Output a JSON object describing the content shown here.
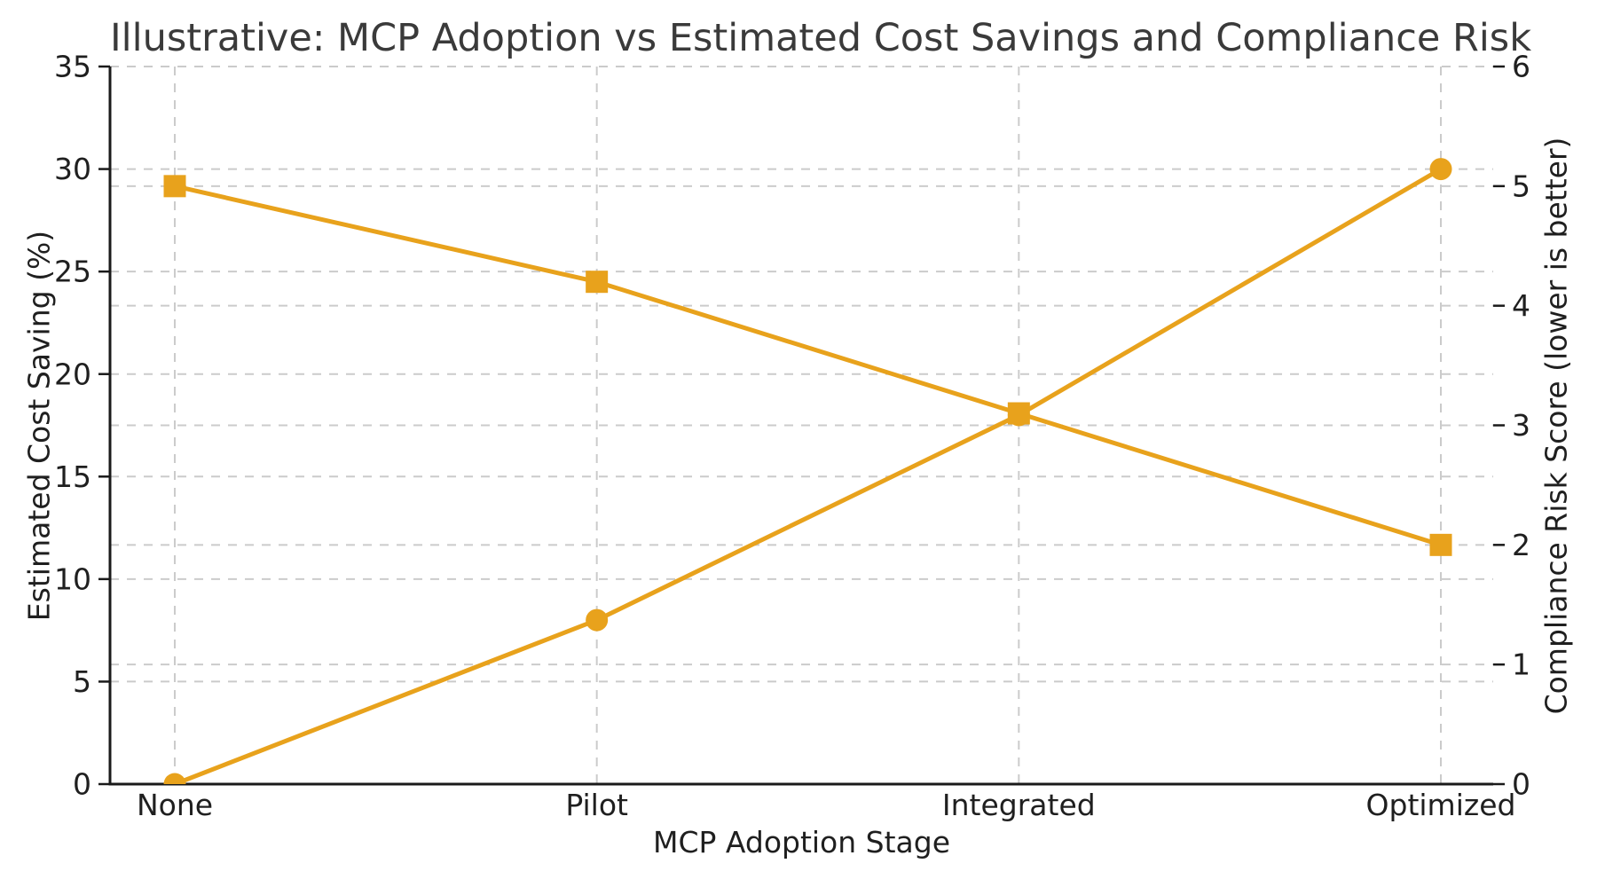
{
  "figure": {
    "title": "Illustrative: MCP Adoption vs Estimated Cost Savings and Compliance Risk"
  },
  "chart_data": {
    "type": "line",
    "title": "Illustrative: MCP Adoption vs Estimated Cost Savings and Compliance Risk",
    "xlabel": "MCP Adoption Stage",
    "categories": [
      "None",
      "Pilot",
      "Integrated",
      "Optimized"
    ],
    "left_axis": {
      "label": "Estimated Cost Saving (%)",
      "min": 0,
      "max": 35,
      "ticks": [
        0,
        5,
        10,
        15,
        20,
        25,
        30,
        35
      ]
    },
    "right_axis": {
      "label": "Compliance Risk Score (lower is better)",
      "min": 0,
      "max": 6,
      "ticks": [
        0,
        1,
        2,
        3,
        4,
        5,
        6
      ]
    },
    "series": [
      {
        "name": "Estimated Cost Saving (%)",
        "axis": "left",
        "marker": "circle",
        "values": [
          0,
          8,
          18,
          30
        ]
      },
      {
        "name": "Compliance Risk Score",
        "axis": "right",
        "marker": "square",
        "values": [
          5,
          4.2,
          3.1,
          2
        ]
      }
    ],
    "grid": true,
    "legend_position": "none",
    "colors": {
      "series": "#E8A21C",
      "grid": "#cbcbcb",
      "spine": "#1a1a1a",
      "title_text": "#3a3a3a",
      "tick_text": "#1f1f1f"
    }
  }
}
